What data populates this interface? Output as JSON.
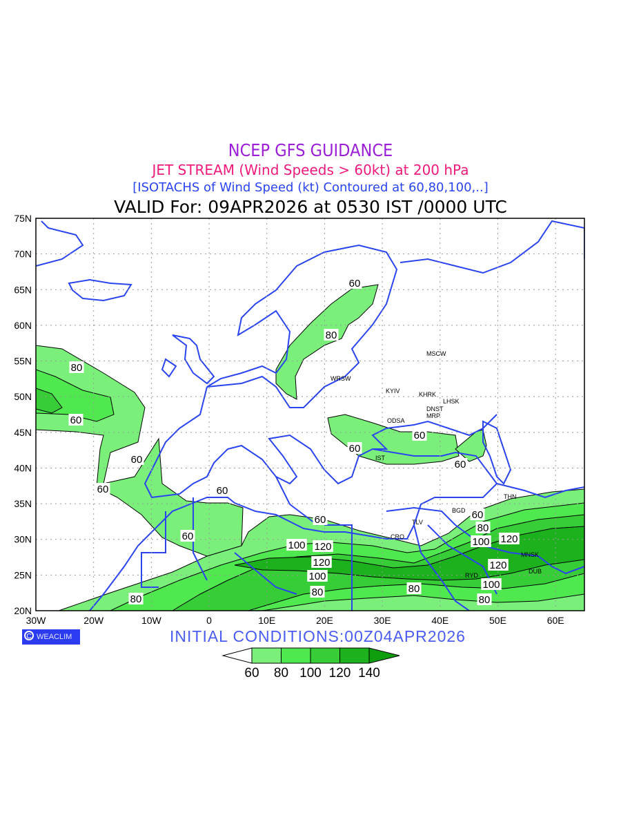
{
  "titles": {
    "line1": "NCEP GFS GUIDANCE",
    "line2": "JET STREAM (Wind Speeds > 60kt) at 200 hPa",
    "line3": "[ISOTACHS of Wind Speed (kt) Contoured at 60,80,100,..]",
    "line4": "VALID For: 09APR2026 at 0530 IST /0000 UTC"
  },
  "axes": {
    "lat_labels": [
      "75N",
      "70N",
      "65N",
      "60N",
      "55N",
      "50N",
      "45N",
      "40N",
      "35N",
      "30N",
      "25N",
      "20N"
    ],
    "lon_labels": [
      "30W",
      "20W",
      "10W",
      "0",
      "10E",
      "20E",
      "30E",
      "40E",
      "50E",
      "60E"
    ]
  },
  "cities": [
    "MSCW",
    "WRSW",
    "KYIV",
    "KHRK",
    "LHSK",
    "DNST",
    "MRP",
    "ODSA",
    "IST",
    "TLV",
    "CRO",
    "BGD",
    "THN",
    "MNSK",
    "RYD",
    "DUB"
  ],
  "contour_labels": [
    "60",
    "80",
    "80",
    "60",
    "60",
    "60",
    "60",
    "60",
    "60",
    "60",
    "60",
    "60",
    "60",
    "80",
    "100",
    "120",
    "120",
    "100",
    "80",
    "80",
    "100",
    "120",
    "120",
    "100",
    "80",
    "80"
  ],
  "brand": {
    "symbol": "C",
    "name": "WEACLIM"
  },
  "initial_conditions": "INITIAL  CONDITIONS:00Z04APR2026",
  "legend": {
    "labels": [
      "60",
      "80",
      "100",
      "120",
      "140"
    ],
    "colors": [
      "#ffffff",
      "#7af07a",
      "#4fe94f",
      "#37cd37",
      "#1db21d",
      "#0e9e0e"
    ]
  },
  "colors": {
    "coast": "#2a44f0",
    "band60": "#7af07a",
    "band80": "#4fe94f",
    "band100": "#37cd37",
    "band120": "#1db21d"
  }
}
